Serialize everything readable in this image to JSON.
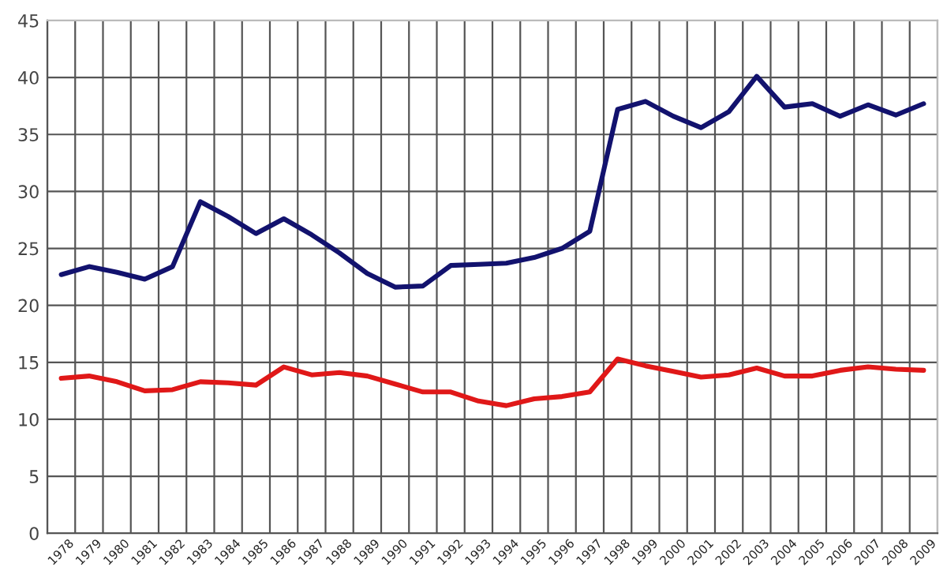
{
  "chart_data": {
    "type": "line",
    "categories": [
      "1978",
      "1979",
      "1980",
      "1981",
      "1982",
      "1983",
      "1984",
      "1985",
      "1986",
      "1987",
      "1988",
      "1989",
      "1990",
      "1991",
      "1992",
      "1993",
      "1994",
      "1995",
      "1996",
      "1997",
      "1998",
      "1999",
      "2000",
      "2001",
      "2002",
      "2003",
      "2004",
      "2005",
      "2006",
      "2007",
      "2008",
      "2009"
    ],
    "series": [
      {
        "color": "#12126e",
        "values": [
          22.7,
          23.4,
          22.9,
          22.3,
          23.4,
          29.1,
          27.8,
          26.3,
          27.6,
          26.2,
          24.6,
          22.8,
          21.6,
          21.7,
          23.5,
          23.6,
          23.7,
          24.2,
          25.0,
          26.5,
          37.2,
          37.9,
          36.6,
          35.6,
          37.0,
          40.1,
          37.4,
          37.7,
          36.6,
          37.6,
          36.7,
          37.7
        ]
      },
      {
        "color": "#e01818",
        "values": [
          13.6,
          13.8,
          13.3,
          12.5,
          12.6,
          13.3,
          13.2,
          13.0,
          14.6,
          13.9,
          14.1,
          13.8,
          13.1,
          12.4,
          12.4,
          11.6,
          11.2,
          11.8,
          12.0,
          12.4,
          15.3,
          14.7,
          14.2,
          13.7,
          13.9,
          14.5,
          13.8,
          13.8,
          14.3,
          14.6,
          14.4,
          14.3
        ]
      }
    ],
    "ylim": [
      0,
      45
    ],
    "yticks": [
      0,
      5,
      10,
      15,
      20,
      25,
      30,
      35,
      40,
      45
    ],
    "grid": true,
    "marker": "none",
    "line_style": "solid"
  }
}
